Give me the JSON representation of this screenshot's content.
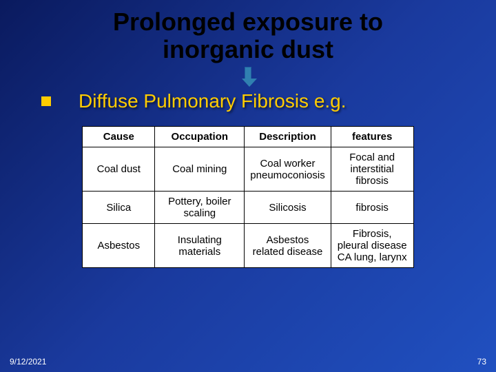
{
  "title_line1": "Prolonged exposure to",
  "title_line2": "inorganic dust",
  "subtitle": "Diffuse Pulmonary Fibrosis e.g.",
  "footer": {
    "date": "9/12/2021",
    "page": "73"
  },
  "table": {
    "columns": [
      "Cause",
      "Occupation",
      "Description",
      "features"
    ],
    "rows": [
      [
        "Coal dust",
        "Coal mining",
        "Coal worker pneumoconiosis",
        "Focal and interstitial fibrosis"
      ],
      [
        "Silica",
        "Pottery, boiler scaling",
        "Silicosis",
        "fibrosis"
      ],
      [
        "Asbestos",
        "Insulating materials",
        "Asbestos related disease",
        "Fibrosis, pleural disease CA lung, larynx"
      ]
    ]
  },
  "colors": {
    "title_color": "#000000",
    "subtitle_color": "#ffcc00",
    "bullet_color": "#ffcc00",
    "arrow_color": "#3080b0",
    "table_border": "#000000",
    "table_bg": "#ffffff",
    "footer_color": "#ffffff",
    "bg_gradient_start": "#0a1a5e",
    "bg_gradient_mid": "#1a3a9e",
    "bg_gradient_end": "#2050c0"
  },
  "typography": {
    "title_fontsize": 36,
    "subtitle_fontsize": 28,
    "table_fontsize": 15,
    "footer_fontsize": 12
  }
}
